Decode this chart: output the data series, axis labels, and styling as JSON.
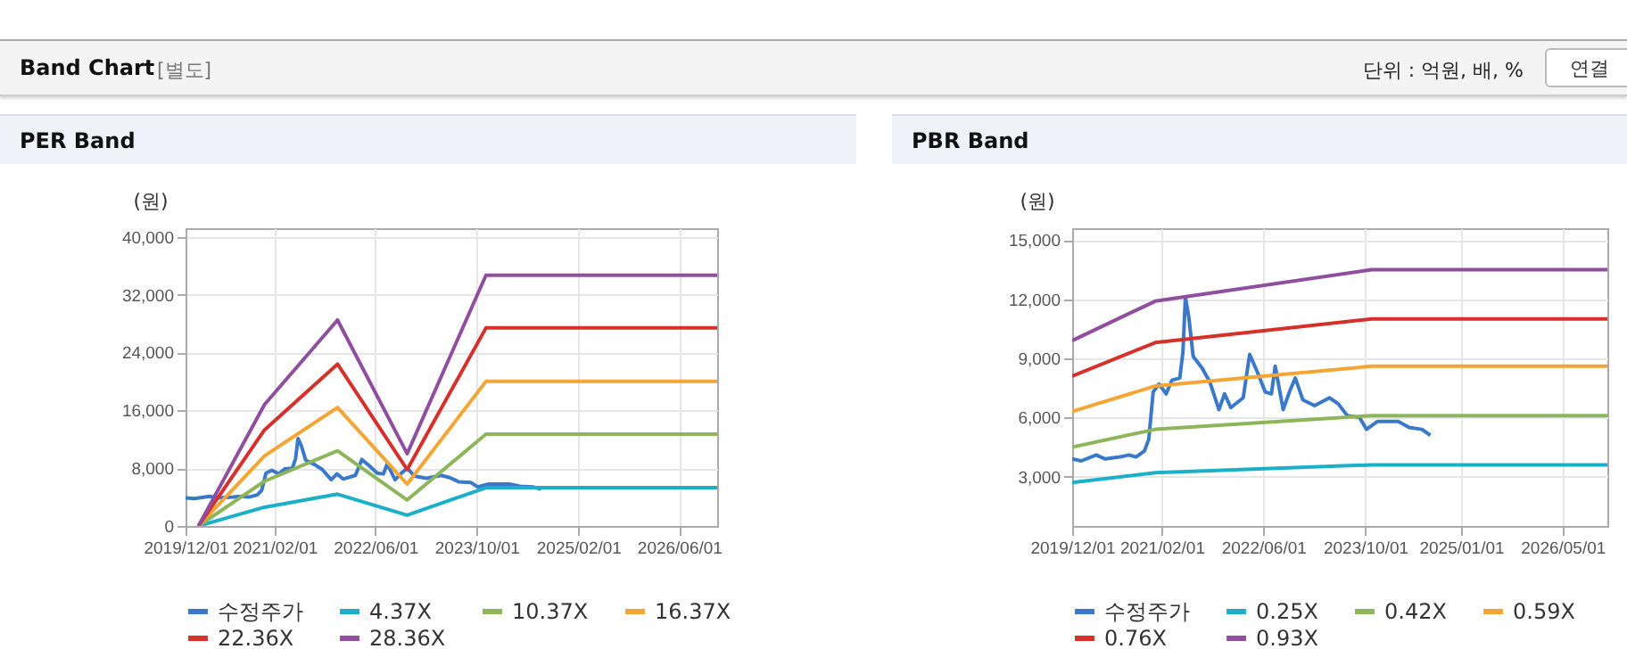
{
  "chart_data": [
    {
      "type": "line",
      "title": "PER Band",
      "ylabel": "(원)",
      "annotations": [
        "Band Chart",
        "[별도]",
        "단위 : 억원, 배, %",
        "연결"
      ],
      "xlim": [
        "2019-12-01",
        "2026-12-01"
      ],
      "xticks": [
        {
          "value": "2019-12-01",
          "label": "2019/12/01"
        },
        {
          "value": "2021-02-01",
          "label": "2021/02/01"
        },
        {
          "value": "2022-06-01",
          "label": "2022/06/01"
        },
        {
          "value": "2023-10-01",
          "label": "2023/10/01"
        },
        {
          "value": "2025-02-01",
          "label": "2025/02/01"
        },
        {
          "value": "2026-06-01",
          "label": "2026/06/01"
        }
      ],
      "ylim": [
        0,
        41200
      ],
      "yticks": [
        {
          "value": 0,
          "label": "0"
        },
        {
          "value": 8000,
          "label": "8,000"
        },
        {
          "value": 16000,
          "label": "16,000"
        },
        {
          "value": 24000,
          "label": "24,000"
        },
        {
          "value": 32000,
          "label": "32,000"
        },
        {
          "value": 40000,
          "label": "40,000"
        }
      ],
      "grid": true,
      "legend": "bottom",
      "series": [
        {
          "name": "수정주가",
          "color": "#3a78c9",
          "x": [
            "2019-12-01",
            "2020-01-13",
            "2020-03-25",
            "2020-05-07",
            "2020-07-16",
            "2020-08-28",
            "2020-10-01",
            "2020-11-10",
            "2020-12-01",
            "2020-12-22",
            "2021-01-19",
            "2021-02-22",
            "2021-03-22",
            "2021-04-28",
            "2021-05-13",
            "2021-05-25",
            "2021-06-10",
            "2021-07-01",
            "2021-08-13",
            "2021-09-19",
            "2021-11-01",
            "2021-11-28",
            "2021-12-28",
            "2022-02-25",
            "2022-03-28",
            "2022-05-04",
            "2022-06-10",
            "2022-07-10",
            "2022-07-28",
            "2022-09-04",
            "2022-10-04",
            "2022-11-01",
            "2022-12-07",
            "2023-02-01",
            "2023-04-13",
            "2023-05-25",
            "2023-07-07",
            "2023-09-04",
            "2023-10-07",
            "2023-11-28",
            "2024-03-07",
            "2024-04-28",
            "2024-06-28",
            "2024-08-07"
          ],
          "values": [
            3900,
            3800,
            4100,
            3900,
            4000,
            4100,
            4000,
            4300,
            4900,
            7300,
            7700,
            7200,
            7900,
            8000,
            9300,
            12100,
            11100,
            9100,
            8500,
            7800,
            6400,
            7200,
            6500,
            7000,
            9200,
            8300,
            7300,
            7200,
            8600,
            6400,
            7300,
            8000,
            6900,
            6600,
            7000,
            6700,
            6100,
            6000,
            5400,
            5800,
            5800,
            5500,
            5400,
            5100
          ]
        },
        {
          "name": "4.37X",
          "color": "#1ab0c8",
          "x": [
            "2020-02-01",
            "2020-12-15",
            "2021-12-01",
            "2022-11-01",
            "2023-11-15",
            "2026-12-01"
          ],
          "values": [
            0,
            2600,
            4400,
            1500,
            5300,
            5300
          ]
        },
        {
          "name": "10.37X",
          "color": "#8db55a",
          "x": [
            "2020-02-01",
            "2020-12-15",
            "2021-12-01",
            "2022-11-01",
            "2023-11-15",
            "2026-12-01"
          ],
          "values": [
            0,
            6200,
            10400,
            3600,
            12700,
            12700
          ]
        },
        {
          "name": "16.37X",
          "color": "#f4a534",
          "x": [
            "2020-02-01",
            "2020-12-15",
            "2021-12-01",
            "2022-11-01",
            "2023-11-15",
            "2026-12-01"
          ],
          "values": [
            0,
            9700,
            16400,
            5800,
            20000,
            20000
          ]
        },
        {
          "name": "22.36X",
          "color": "#d6302b",
          "x": [
            "2020-02-01",
            "2020-12-15",
            "2021-12-01",
            "2022-11-01",
            "2023-11-15",
            "2026-12-01"
          ],
          "values": [
            0,
            13300,
            22400,
            7800,
            27400,
            27400
          ]
        },
        {
          "name": "28.36X",
          "color": "#8f4f9e",
          "x": [
            "2020-02-01",
            "2020-12-15",
            "2021-12-01",
            "2022-11-01",
            "2023-11-15",
            "2026-12-01"
          ],
          "values": [
            0,
            16800,
            28500,
            10000,
            34700,
            34700
          ]
        }
      ]
    },
    {
      "type": "line",
      "title": "PBR Band",
      "ylabel": "(원)",
      "xlim": [
        "2019-12-01",
        "2026-12-01"
      ],
      "xticks": [
        {
          "value": "2019-12-01",
          "label": "2019/12/01"
        },
        {
          "value": "2021-02-01",
          "label": "2021/02/01"
        },
        {
          "value": "2022-06-01",
          "label": "2022/06/01"
        },
        {
          "value": "2023-10-01",
          "label": "2023/10/01"
        },
        {
          "value": "2025-01-01",
          "label": "2025/01/01"
        },
        {
          "value": "2026-05-01",
          "label": "2026/05/01"
        }
      ],
      "ylim": [
        500,
        15600
      ],
      "yticks": [
        {
          "value": 3000,
          "label": "3,000"
        },
        {
          "value": 6000,
          "label": "6,000"
        },
        {
          "value": 9000,
          "label": "9,000"
        },
        {
          "value": 12000,
          "label": "12,000"
        },
        {
          "value": 15000,
          "label": "15,000"
        }
      ],
      "grid": true,
      "legend": "bottom",
      "series": [
        {
          "name": "수정주가",
          "color": "#3a78c9",
          "x": [
            "2019-12-01",
            "2020-01-13",
            "2020-03-25",
            "2020-05-07",
            "2020-07-16",
            "2020-08-28",
            "2020-10-01",
            "2020-11-10",
            "2020-12-01",
            "2020-12-22",
            "2021-01-19",
            "2021-02-22",
            "2021-03-22",
            "2021-04-28",
            "2021-05-13",
            "2021-05-25",
            "2021-06-10",
            "2021-07-01",
            "2021-08-13",
            "2021-09-19",
            "2021-11-01",
            "2021-11-28",
            "2021-12-28",
            "2022-02-25",
            "2022-03-28",
            "2022-05-04",
            "2022-06-10",
            "2022-07-10",
            "2022-07-28",
            "2022-09-04",
            "2022-10-04",
            "2022-11-01",
            "2022-12-07",
            "2023-02-01",
            "2023-04-13",
            "2023-05-25",
            "2023-07-07",
            "2023-09-04",
            "2023-10-07",
            "2023-11-28",
            "2024-03-07",
            "2024-04-28",
            "2024-06-28",
            "2024-08-07"
          ],
          "values": [
            3900,
            3800,
            4100,
            3900,
            4000,
            4100,
            4000,
            4300,
            4900,
            7300,
            7700,
            7200,
            7900,
            8000,
            9300,
            12100,
            11100,
            9100,
            8500,
            7800,
            6400,
            7200,
            6500,
            7000,
            9200,
            8300,
            7300,
            7200,
            8600,
            6400,
            7300,
            8000,
            6900,
            6600,
            7000,
            6700,
            6100,
            6000,
            5400,
            5800,
            5800,
            5500,
            5400,
            5100
          ]
        },
        {
          "name": "0.25X",
          "color": "#1ab0c8",
          "x": [
            "2019-12-01",
            "2021-01-01",
            "2023-11-01",
            "2026-12-01"
          ],
          "values": [
            2700,
            3200,
            3600,
            3600
          ]
        },
        {
          "name": "0.42X",
          "color": "#8db55a",
          "x": [
            "2019-12-01",
            "2021-01-01",
            "2023-11-01",
            "2026-12-01"
          ],
          "values": [
            4500,
            5400,
            6100,
            6100
          ]
        },
        {
          "name": "0.59X",
          "color": "#f4a534",
          "x": [
            "2019-12-01",
            "2021-01-01",
            "2023-11-01",
            "2026-12-01"
          ],
          "values": [
            6300,
            7600,
            8600,
            8600
          ]
        },
        {
          "name": "0.76X",
          "color": "#d6302b",
          "x": [
            "2019-12-01",
            "2021-01-01",
            "2023-11-01",
            "2026-12-01"
          ],
          "values": [
            8100,
            9800,
            11000,
            11000
          ]
        },
        {
          "name": "0.93X",
          "color": "#8f4f9e",
          "x": [
            "2019-12-01",
            "2021-01-01",
            "2023-11-01",
            "2026-12-01"
          ],
          "values": [
            9900,
            11900,
            13500,
            13500
          ]
        }
      ]
    }
  ]
}
